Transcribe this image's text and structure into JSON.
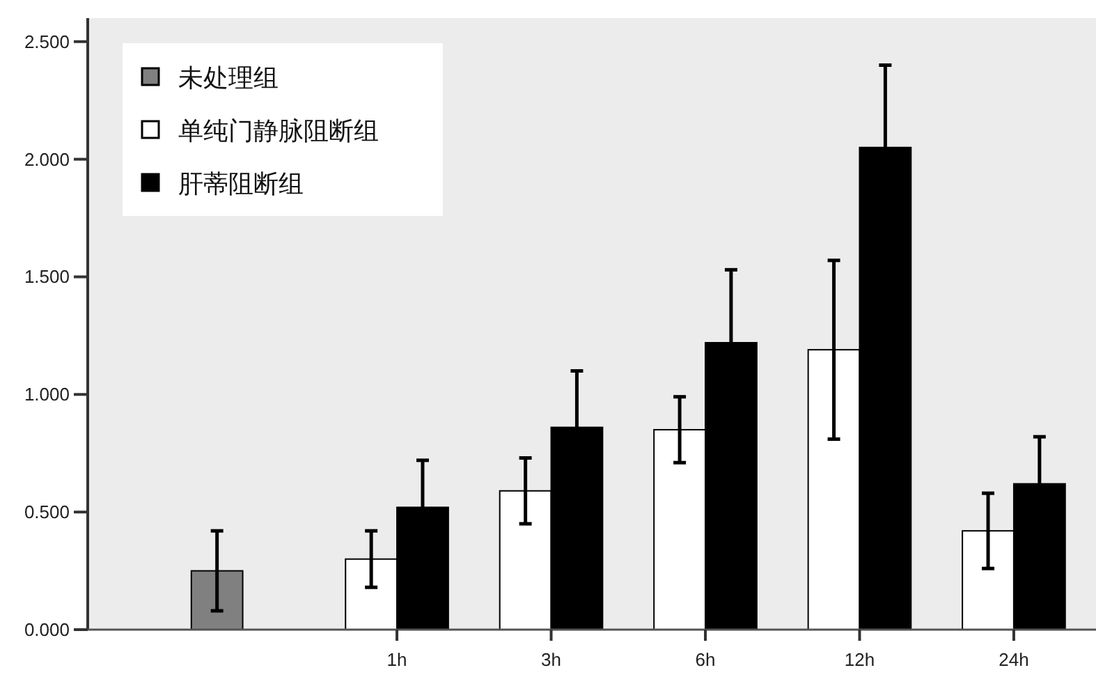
{
  "chart_data": {
    "type": "bar",
    "categories": [
      null,
      "1h",
      "3h",
      "6h",
      "12h",
      "24h"
    ],
    "series": [
      {
        "name": "未处理组",
        "color": "#808080",
        "values": [
          0.25,
          null,
          null,
          null,
          null,
          null
        ],
        "errors": [
          0.17,
          null,
          null,
          null,
          null,
          null
        ]
      },
      {
        "name": "单纯门静脉阻断组",
        "color": "#ffffff",
        "values": [
          null,
          0.3,
          0.59,
          0.85,
          1.19,
          0.42
        ],
        "errors": [
          null,
          0.12,
          0.14,
          0.14,
          0.38,
          0.16
        ]
      },
      {
        "name": "肝蒂阻断组",
        "color": "#000000",
        "values": [
          null,
          0.52,
          0.86,
          1.22,
          2.05,
          0.62
        ],
        "errors": [
          null,
          0.2,
          0.24,
          0.31,
          0.35,
          0.2
        ]
      }
    ],
    "ylim": [
      0,
      2.6
    ],
    "yticks": [
      {
        "value": 0,
        "label": "0.000"
      },
      {
        "value": 0.5,
        "label": "0.500"
      },
      {
        "value": 1,
        "label": "1.000"
      },
      {
        "value": 1.5,
        "label": "1.500"
      },
      {
        "value": 2,
        "label": "2.000"
      },
      {
        "value": 2.5,
        "label": "2.500"
      }
    ],
    "legend": "top left",
    "grid": false
  }
}
